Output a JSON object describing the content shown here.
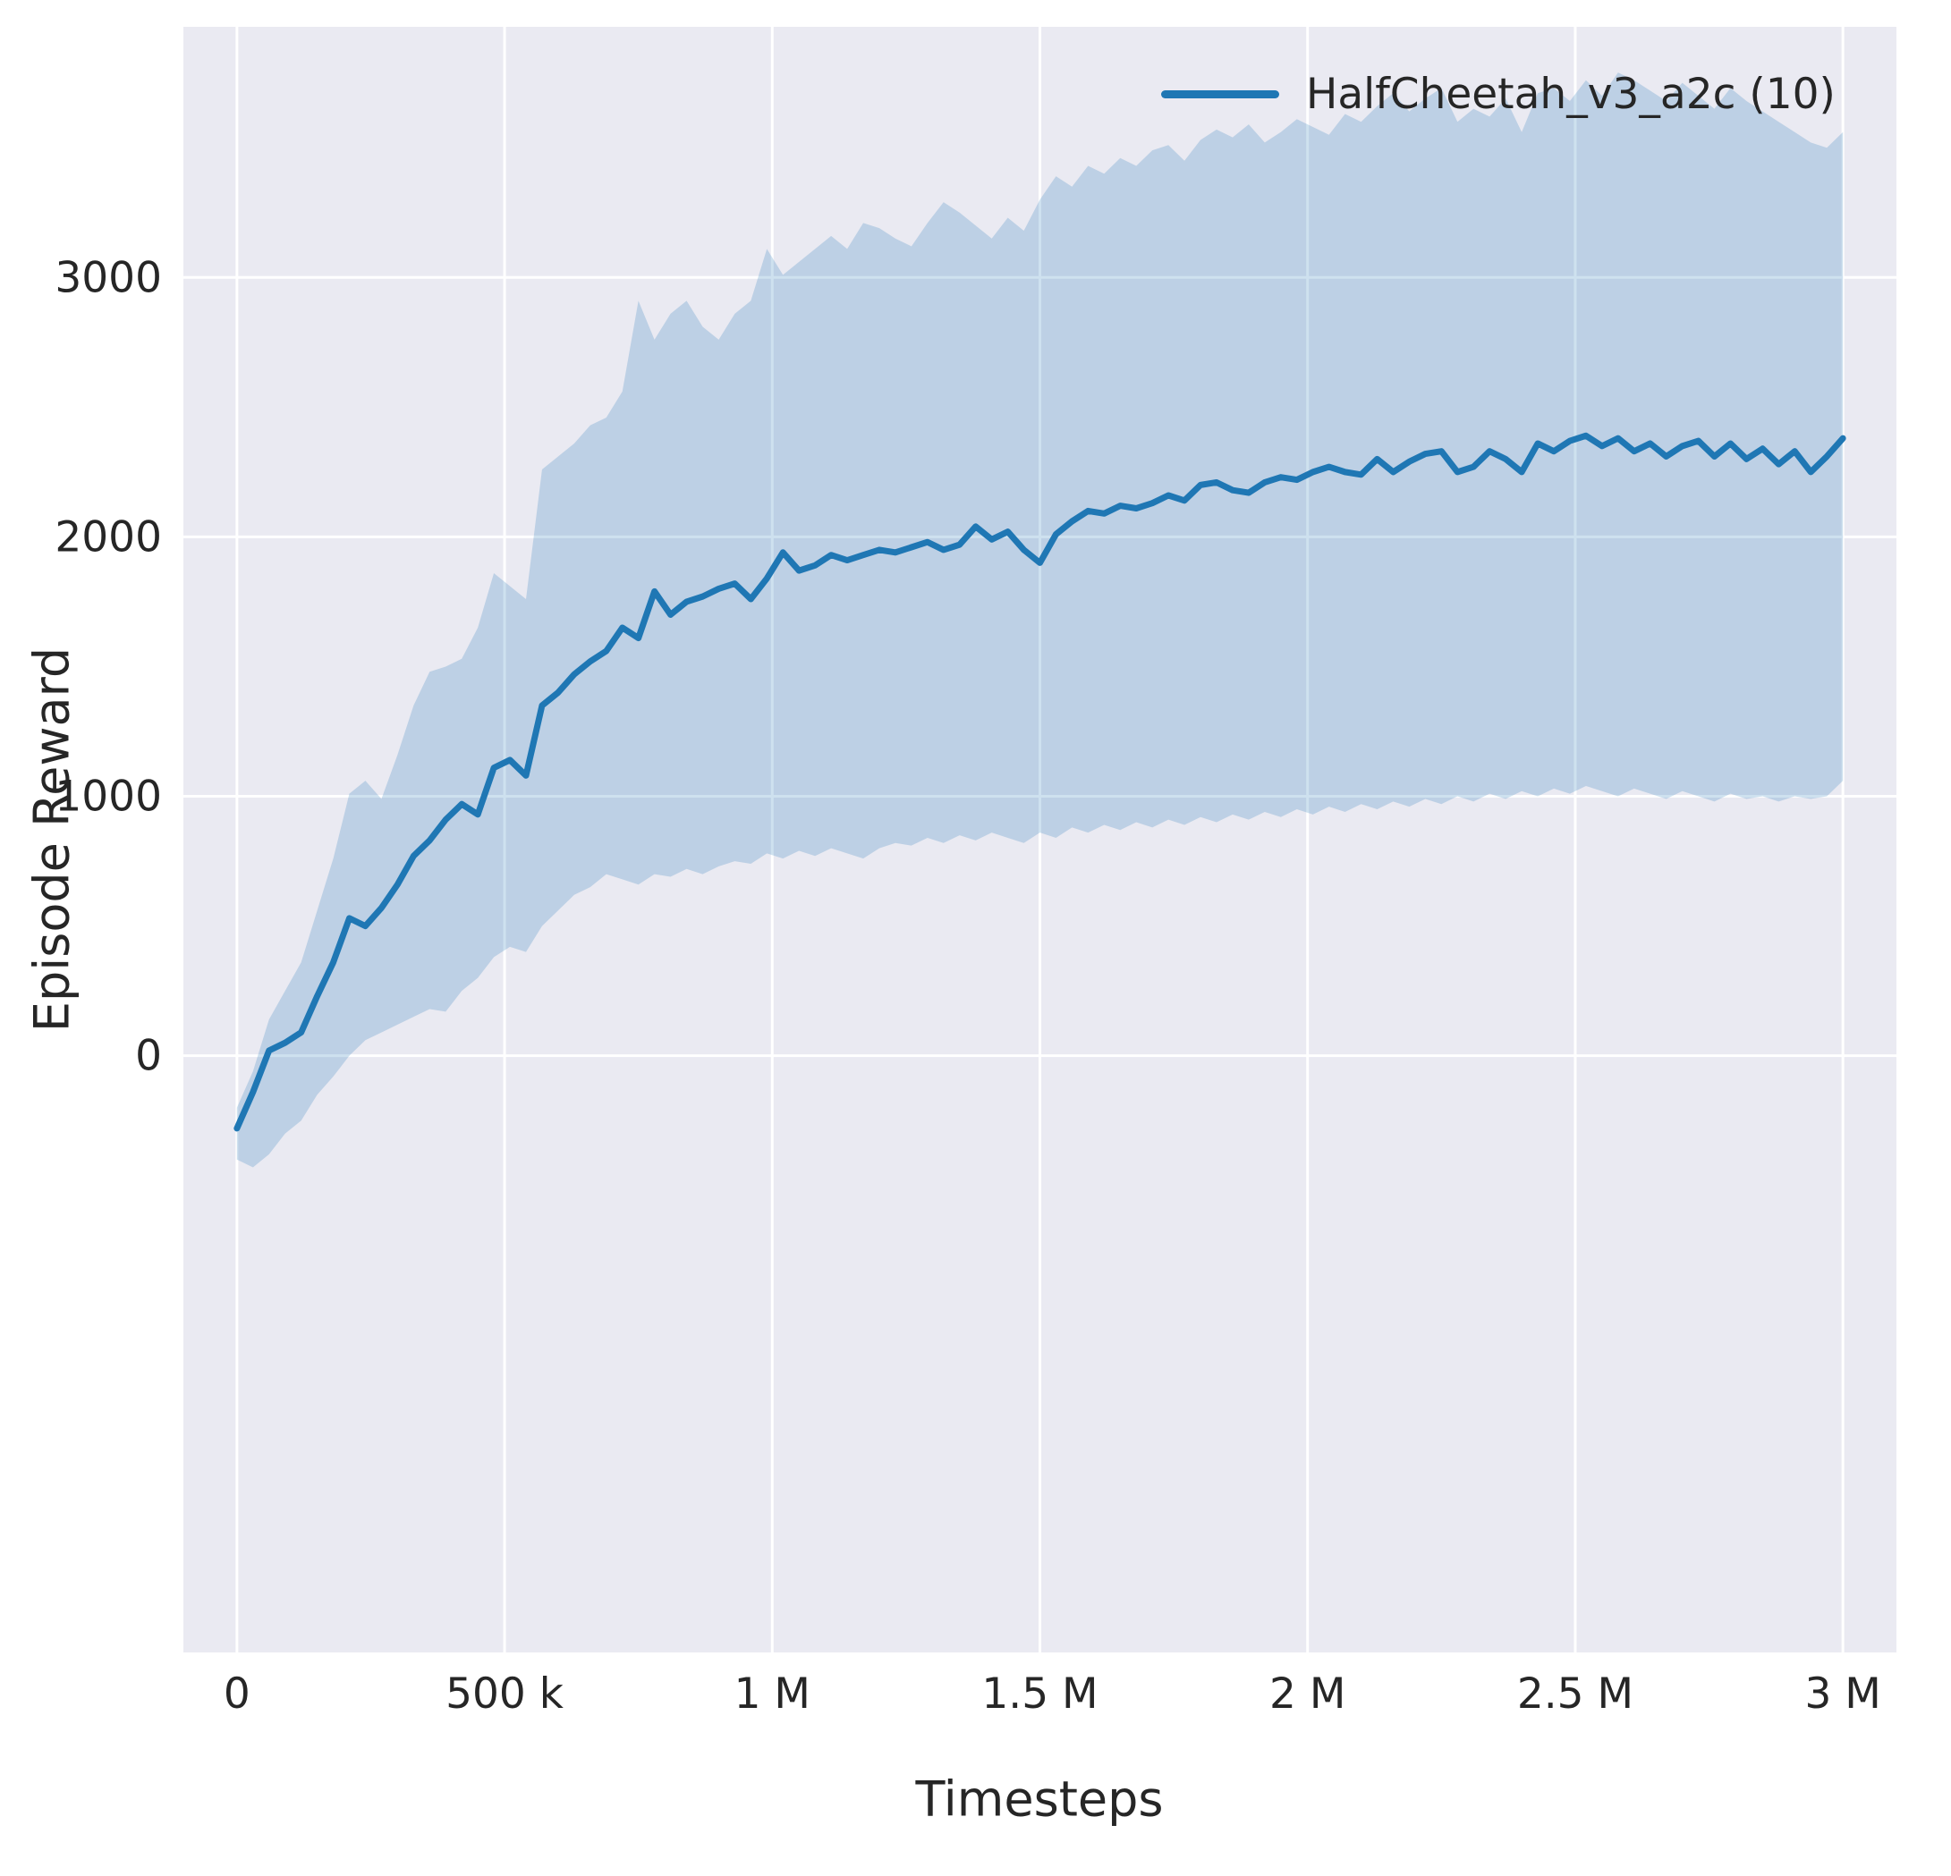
{
  "figure": {
    "xlabel": "Timesteps",
    "ylabel": "Episode Reward",
    "legend": [
      {
        "label": "HalfCheetah_v3_a2c (10)"
      }
    ]
  },
  "chart_data": {
    "type": "line",
    "title": "",
    "xlabel": "Timesteps",
    "ylabel": "Episode Reward",
    "legend_position": "upper right inside plot, no frame",
    "grid": "on (white gridlines on light lavender background)",
    "x_unit": "timesteps (millions)",
    "xlim": [
      -0.1,
      3.1
    ],
    "ylim": [
      -2300,
      3966
    ],
    "x_ticks": [
      0,
      0.5,
      1,
      1.5,
      2,
      2.5,
      3
    ],
    "x_tick_labels": [
      "0",
      "500 k",
      "1 M",
      "1.5 M",
      "2 M",
      "2.5 M",
      "3 M"
    ],
    "y_ticks": [
      0,
      1000,
      2000,
      3000
    ],
    "y_tick_labels": [
      "0",
      "1000",
      "2000",
      "3000"
    ],
    "colors": {
      "line": "#1f77b4",
      "band": "rgba(31,119,180,0.22)",
      "plot_bg": "#eaeaf2",
      "grid": "#ffffff",
      "text": "#262626"
    },
    "x": [
      0,
      0.03,
      0.06,
      0.09,
      0.12,
      0.15,
      0.18,
      0.21,
      0.24,
      0.27,
      0.3,
      0.33,
      0.36,
      0.39,
      0.42,
      0.45,
      0.48,
      0.51,
      0.54,
      0.57,
      0.6,
      0.63,
      0.66,
      0.69,
      0.72,
      0.75,
      0.78,
      0.81,
      0.84,
      0.87,
      0.9,
      0.93,
      0.96,
      0.99,
      1.02,
      1.05,
      1.08,
      1.11,
      1.14,
      1.17,
      1.2,
      1.23,
      1.26,
      1.29,
      1.32,
      1.35,
      1.38,
      1.41,
      1.44,
      1.47,
      1.5,
      1.53,
      1.56,
      1.59,
      1.62,
      1.65,
      1.68,
      1.71,
      1.74,
      1.77,
      1.8,
      1.83,
      1.86,
      1.89,
      1.92,
      1.95,
      1.98,
      2.01,
      2.04,
      2.07,
      2.1,
      2.13,
      2.16,
      2.19,
      2.22,
      2.25,
      2.28,
      2.31,
      2.34,
      2.37,
      2.4,
      2.43,
      2.46,
      2.49,
      2.52,
      2.55,
      2.58,
      2.61,
      2.64,
      2.67,
      2.7,
      2.73,
      2.76,
      2.79,
      2.82,
      2.85,
      2.88,
      2.91,
      2.94,
      2.97,
      3
    ],
    "series": [
      {
        "name": "HalfCheetah_v3_a2c (10) mean episode reward",
        "values": [
          -280,
          -140,
          20,
          50,
          90,
          230,
          360,
          530,
          500,
          570,
          660,
          770,
          830,
          910,
          970,
          930,
          1110,
          1140,
          1080,
          1350,
          1400,
          1470,
          1520,
          1560,
          1650,
          1610,
          1790,
          1700,
          1750,
          1770,
          1800,
          1820,
          1760,
          1840,
          1940,
          1870,
          1890,
          1930,
          1910,
          1930,
          1950,
          1940,
          1960,
          1980,
          1950,
          1970,
          2040,
          1990,
          2020,
          1950,
          1900,
          2010,
          2060,
          2100,
          2090,
          2120,
          2110,
          2130,
          2160,
          2140,
          2200,
          2210,
          2180,
          2170,
          2210,
          2230,
          2220,
          2250,
          2270,
          2250,
          2240,
          2300,
          2250,
          2290,
          2320,
          2330,
          2250,
          2270,
          2330,
          2300,
          2250,
          2360,
          2330,
          2370,
          2390,
          2350,
          2380,
          2330,
          2360,
          2310,
          2350,
          2370,
          2310,
          2360,
          2300,
          2340,
          2280,
          2330,
          2250,
          2310,
          2380
        ]
      },
      {
        "name": "confidence band upper bound",
        "values": [
          -200,
          -60,
          140,
          250,
          360,
          560,
          760,
          1010,
          1060,
          990,
          1160,
          1350,
          1480,
          1500,
          1530,
          1650,
          1860,
          1810,
          1760,
          2260,
          2310,
          2360,
          2430,
          2460,
          2560,
          2910,
          2760,
          2860,
          2910,
          2810,
          2760,
          2860,
          2910,
          3110,
          3010,
          3060,
          3110,
          3160,
          3110,
          3210,
          3190,
          3150,
          3120,
          3210,
          3290,
          3250,
          3200,
          3150,
          3230,
          3180,
          3300,
          3390,
          3350,
          3430,
          3400,
          3460,
          3430,
          3490,
          3510,
          3450,
          3530,
          3570,
          3540,
          3590,
          3520,
          3560,
          3610,
          3580,
          3550,
          3630,
          3600,
          3660,
          3710,
          3640,
          3690,
          3730,
          3600,
          3650,
          3620,
          3690,
          3560,
          3710,
          3730,
          3680,
          3760,
          3700,
          3790,
          3760,
          3720,
          3680,
          3750,
          3700,
          3650,
          3730,
          3680,
          3640,
          3600,
          3560,
          3520,
          3500,
          3560
        ]
      },
      {
        "name": "confidence band lower bound",
        "values": [
          -400,
          -430,
          -380,
          -300,
          -250,
          -150,
          -80,
          0,
          60,
          90,
          120,
          150,
          180,
          170,
          250,
          300,
          380,
          420,
          400,
          500,
          560,
          620,
          650,
          700,
          680,
          660,
          700,
          690,
          720,
          700,
          730,
          750,
          740,
          780,
          760,
          790,
          770,
          800,
          780,
          760,
          800,
          820,
          810,
          840,
          820,
          850,
          830,
          860,
          840,
          820,
          860,
          840,
          880,
          860,
          890,
          870,
          900,
          880,
          910,
          890,
          920,
          900,
          930,
          910,
          940,
          920,
          950,
          930,
          960,
          940,
          970,
          950,
          980,
          960,
          990,
          970,
          1000,
          980,
          1010,
          990,
          1020,
          1000,
          1030,
          1010,
          1040,
          1020,
          1000,
          1030,
          1010,
          990,
          1020,
          1000,
          980,
          1010,
          990,
          1000,
          980,
          1000,
          990,
          1000,
          1060
        ]
      }
    ]
  }
}
